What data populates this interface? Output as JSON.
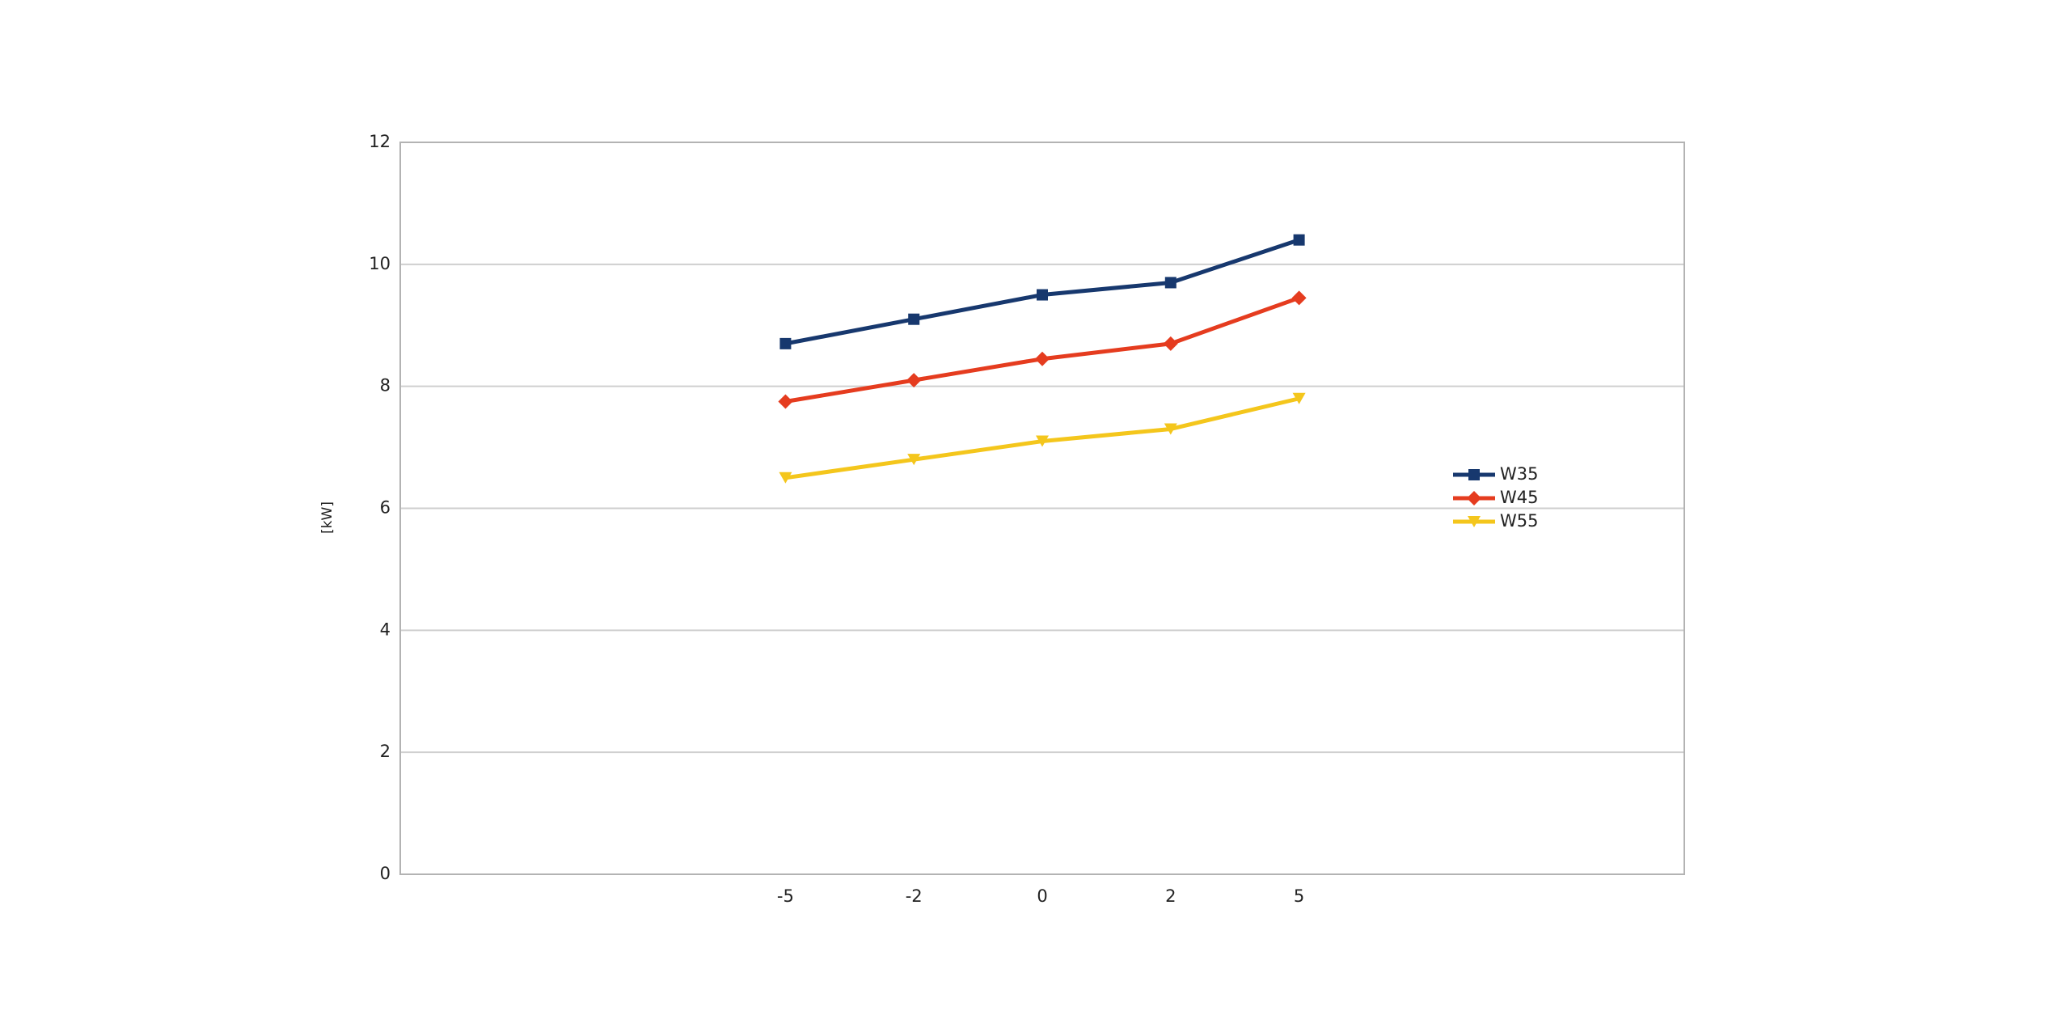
{
  "chart_data": {
    "type": "line",
    "y_label": "[kW]",
    "categories": [
      null,
      null,
      null,
      "-5",
      "-2",
      "0",
      "2",
      "5",
      null,
      null,
      null
    ],
    "series": [
      {
        "name": "W35",
        "color": "#17386e",
        "marker": "square",
        "values": [
          null,
          null,
          null,
          8.7,
          9.1,
          9.5,
          9.7,
          10.4,
          null,
          null,
          null
        ]
      },
      {
        "name": "W45",
        "color": "#e53c1f",
        "marker": "diamond",
        "values": [
          null,
          null,
          null,
          7.75,
          8.1,
          8.45,
          8.7,
          9.45,
          null,
          null,
          null
        ]
      },
      {
        "name": "W55",
        "color": "#f4c61c",
        "marker": "triangle-down",
        "values": [
          null,
          null,
          null,
          6.5,
          6.8,
          7.1,
          7.3,
          7.8,
          null,
          null,
          null
        ]
      }
    ],
    "ylim": [
      0,
      12
    ],
    "yticks": [
      0,
      2,
      4,
      6,
      8,
      10,
      12
    ],
    "grid": true,
    "legend": "right"
  }
}
